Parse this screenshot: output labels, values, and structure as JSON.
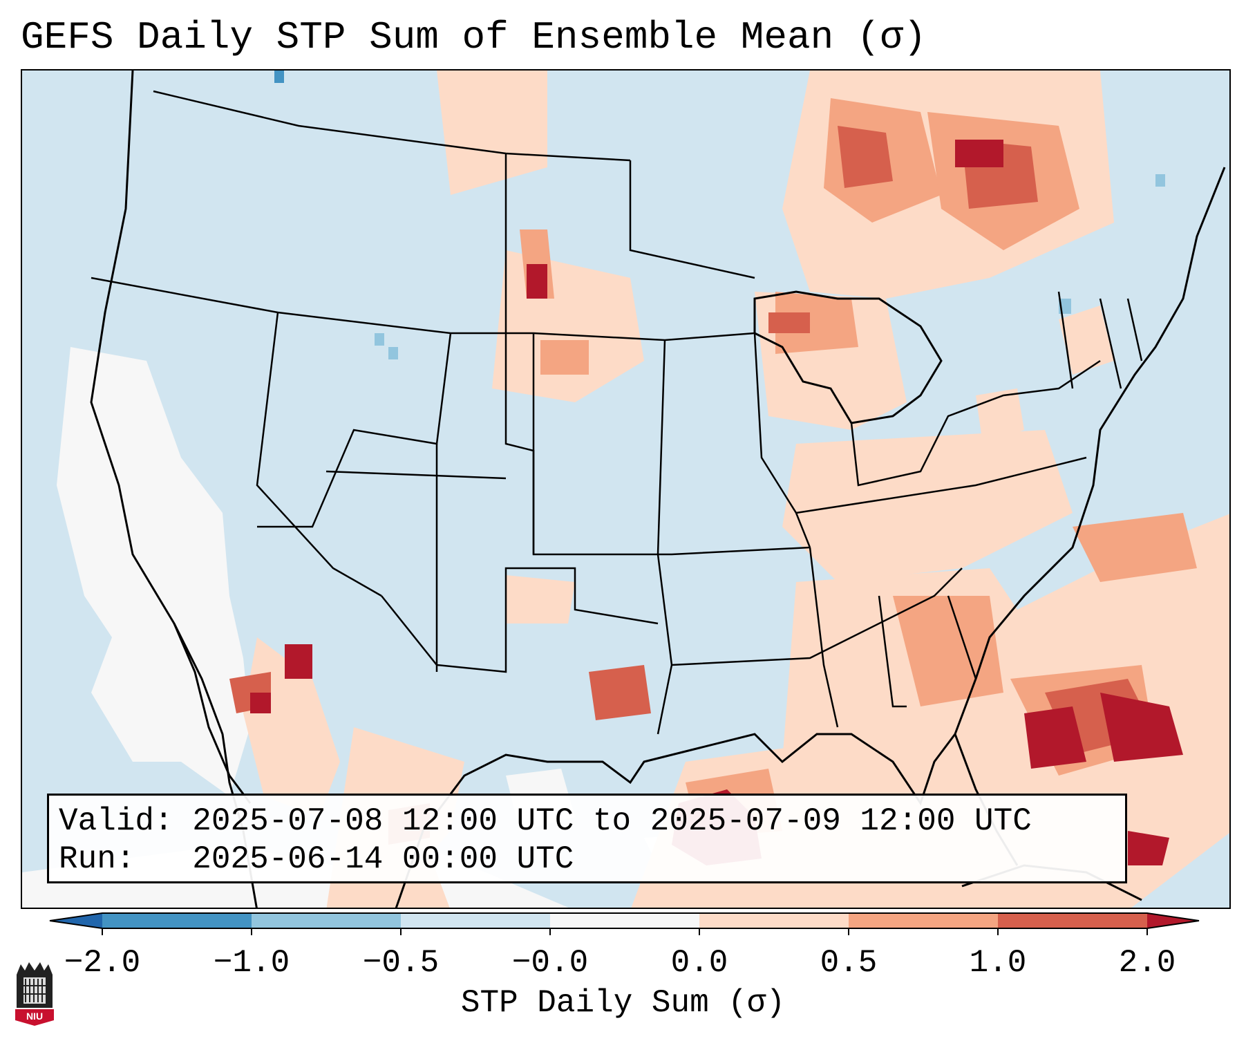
{
  "title": "GEFS Daily STP Sum of Ensemble Mean (σ)",
  "info": {
    "valid_label": "Valid:",
    "valid_value": "2025-07-08 12:00 UTC to 2025-07-09 12:00 UTC",
    "run_label": "Run:",
    "run_value": "2025-06-14 00:00 UTC"
  },
  "colorbar": {
    "label": "STP Daily Sum (σ)",
    "ticks": [
      "−2.0",
      "−1.0",
      "−0.5",
      "−0.0",
      "0.0",
      "0.5",
      "1.0",
      "2.0"
    ],
    "bins": [
      {
        "range": "-2.0 to -1.0",
        "color": "#4393c3"
      },
      {
        "range": "-1.0 to -0.5",
        "color": "#92c5de"
      },
      {
        "range": "-0.5 to -0.0",
        "color": "#d1e5f0"
      },
      {
        "range": "-0.0 to 0.0",
        "color": "#f7f7f7"
      },
      {
        "range": "0.0 to 0.5",
        "color": "#fddbc7"
      },
      {
        "range": "0.5 to 1.0",
        "color": "#f4a582"
      },
      {
        "range": "1.0 to 2.0",
        "color": "#d6604d"
      }
    ],
    "under_color": "#2166ac",
    "over_color": "#b2182b"
  },
  "map": {
    "background_bin_color": "#d1e5f0",
    "ocean_neutral_color": "#f7f7f7",
    "region_notes": [
      "Northern Gulf of Mexico high STP",
      "Western Atlantic off Southeast US high STP",
      "Ontario/Quebec elevated STP"
    ]
  },
  "logo": {
    "text": "NIU"
  }
}
